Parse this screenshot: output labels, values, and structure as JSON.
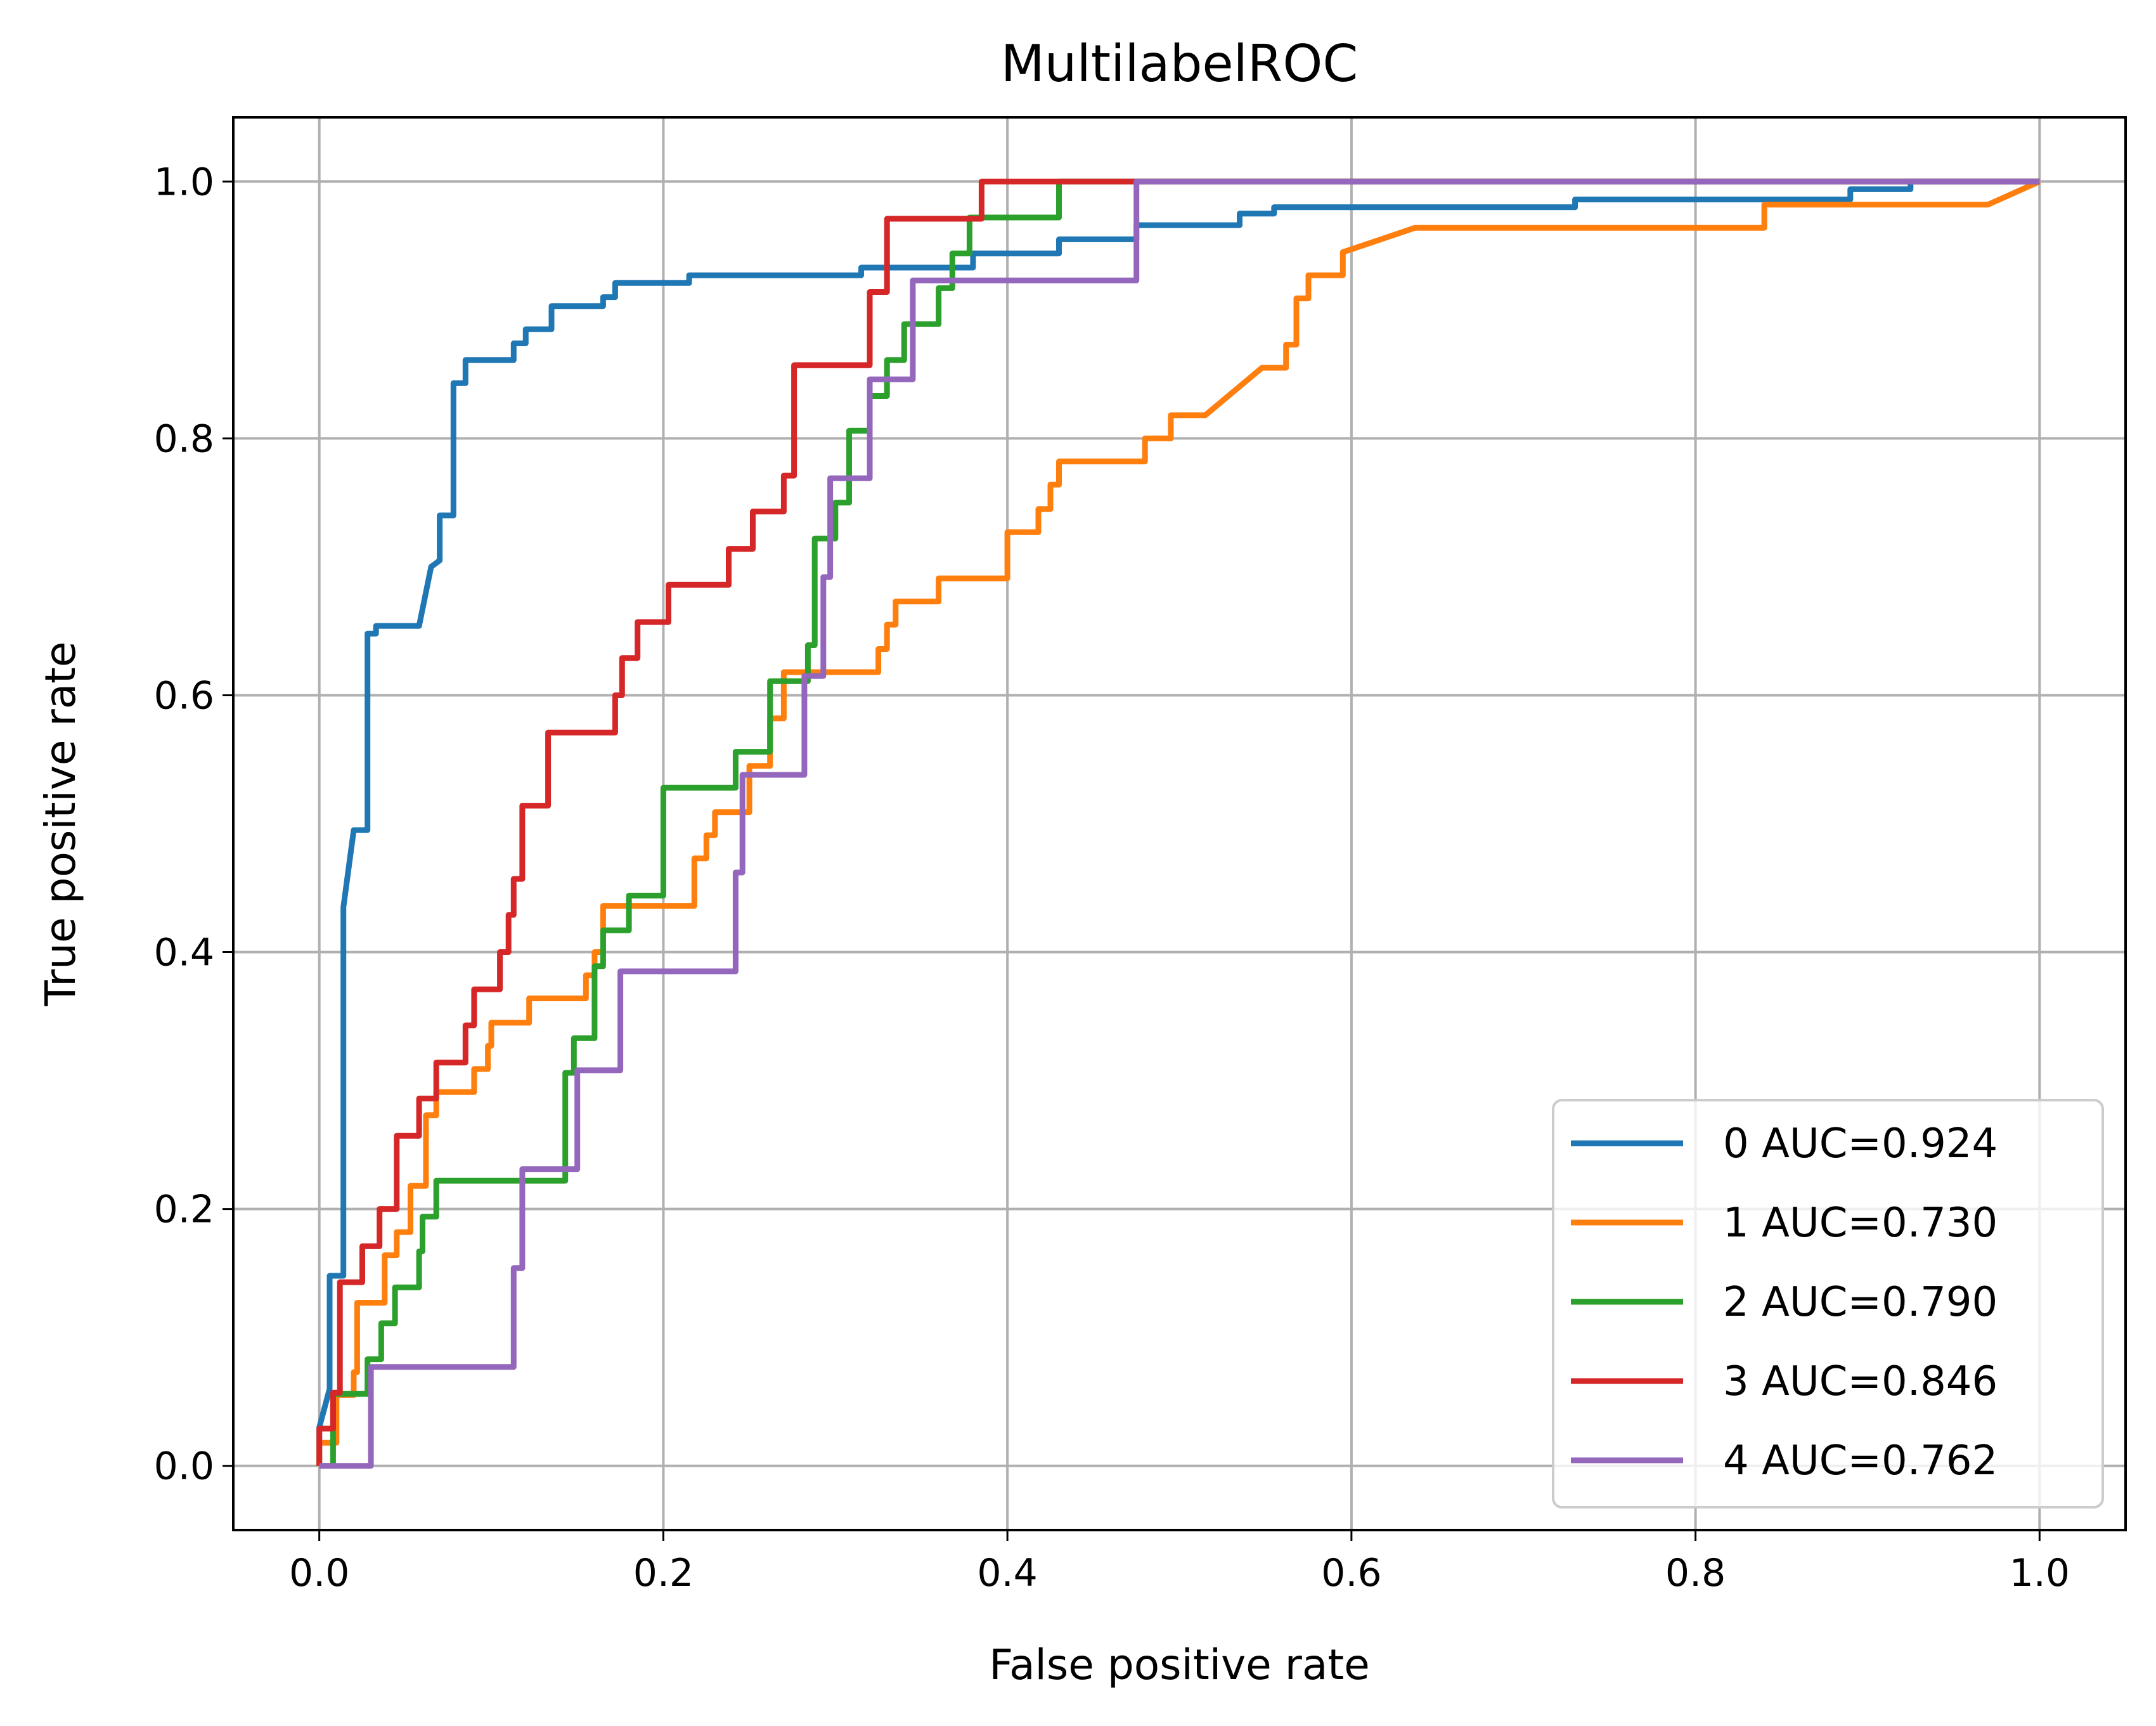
{
  "chart_data": {
    "type": "line",
    "title": "MultilabelROC",
    "xlabel": "False positive rate",
    "ylabel": "True positive rate",
    "xlim": [
      -0.05,
      1.05
    ],
    "ylim": [
      -0.05,
      1.05
    ],
    "grid": true,
    "legend_position": "lower right",
    "x_ticks": [
      "0.0",
      "0.2",
      "0.4",
      "0.6",
      "0.8",
      "1.0"
    ],
    "y_ticks": [
      "0.0",
      "0.2",
      "0.4",
      "0.6",
      "0.8",
      "1.0"
    ],
    "series": [
      {
        "name": "0 AUC=0.924",
        "color": "#1f77b4",
        "points": [
          [
            0,
            0
          ],
          [
            0,
            0.03
          ],
          [
            0.006,
            0.06
          ],
          [
            0.006,
            0.148
          ],
          [
            0.014,
            0.148
          ],
          [
            0.014,
            0.435
          ],
          [
            0.02,
            0.495
          ],
          [
            0.028,
            0.495
          ],
          [
            0.028,
            0.648
          ],
          [
            0.033,
            0.648
          ],
          [
            0.033,
            0.654
          ],
          [
            0.058,
            0.654
          ],
          [
            0.065,
            0.7
          ],
          [
            0.07,
            0.705
          ],
          [
            0.07,
            0.74
          ],
          [
            0.078,
            0.74
          ],
          [
            0.078,
            0.843
          ],
          [
            0.085,
            0.843
          ],
          [
            0.085,
            0.861
          ],
          [
            0.113,
            0.861
          ],
          [
            0.113,
            0.874
          ],
          [
            0.12,
            0.874
          ],
          [
            0.12,
            0.885
          ],
          [
            0.135,
            0.885
          ],
          [
            0.135,
            0.903
          ],
          [
            0.165,
            0.903
          ],
          [
            0.165,
            0.91
          ],
          [
            0.172,
            0.91
          ],
          [
            0.172,
            0.921
          ],
          [
            0.215,
            0.921
          ],
          [
            0.215,
            0.927
          ],
          [
            0.315,
            0.927
          ],
          [
            0.315,
            0.933
          ],
          [
            0.38,
            0.933
          ],
          [
            0.38,
            0.944
          ],
          [
            0.43,
            0.944
          ],
          [
            0.43,
            0.955
          ],
          [
            0.475,
            0.955
          ],
          [
            0.475,
            0.966
          ],
          [
            0.535,
            0.966
          ],
          [
            0.535,
            0.975
          ],
          [
            0.555,
            0.975
          ],
          [
            0.555,
            0.98
          ],
          [
            0.73,
            0.98
          ],
          [
            0.73,
            0.986
          ],
          [
            0.89,
            0.986
          ],
          [
            0.89,
            0.994
          ],
          [
            0.925,
            0.994
          ],
          [
            0.925,
            1.0
          ],
          [
            1.0,
            1.0
          ]
        ]
      },
      {
        "name": "1 AUC=0.730",
        "color": "#ff7f0e",
        "points": [
          [
            0,
            0
          ],
          [
            0,
            0.018
          ],
          [
            0.01,
            0.018
          ],
          [
            0.01,
            0.055
          ],
          [
            0.02,
            0.055
          ],
          [
            0.02,
            0.073
          ],
          [
            0.022,
            0.073
          ],
          [
            0.022,
            0.127
          ],
          [
            0.038,
            0.127
          ],
          [
            0.038,
            0.164
          ],
          [
            0.045,
            0.164
          ],
          [
            0.045,
            0.182
          ],
          [
            0.053,
            0.182
          ],
          [
            0.053,
            0.218
          ],
          [
            0.062,
            0.218
          ],
          [
            0.062,
            0.273
          ],
          [
            0.068,
            0.273
          ],
          [
            0.068,
            0.291
          ],
          [
            0.09,
            0.291
          ],
          [
            0.09,
            0.309
          ],
          [
            0.098,
            0.309
          ],
          [
            0.098,
            0.327
          ],
          [
            0.1,
            0.327
          ],
          [
            0.1,
            0.345
          ],
          [
            0.122,
            0.345
          ],
          [
            0.122,
            0.364
          ],
          [
            0.155,
            0.364
          ],
          [
            0.155,
            0.382
          ],
          [
            0.16,
            0.382
          ],
          [
            0.16,
            0.4
          ],
          [
            0.165,
            0.4
          ],
          [
            0.165,
            0.436
          ],
          [
            0.218,
            0.436
          ],
          [
            0.218,
            0.473
          ],
          [
            0.225,
            0.473
          ],
          [
            0.225,
            0.491
          ],
          [
            0.23,
            0.491
          ],
          [
            0.23,
            0.509
          ],
          [
            0.25,
            0.509
          ],
          [
            0.25,
            0.545
          ],
          [
            0.262,
            0.545
          ],
          [
            0.262,
            0.582
          ],
          [
            0.27,
            0.582
          ],
          [
            0.27,
            0.618
          ],
          [
            0.325,
            0.618
          ],
          [
            0.325,
            0.636
          ],
          [
            0.33,
            0.636
          ],
          [
            0.33,
            0.655
          ],
          [
            0.335,
            0.655
          ],
          [
            0.335,
            0.673
          ],
          [
            0.36,
            0.673
          ],
          [
            0.36,
            0.691
          ],
          [
            0.4,
            0.691
          ],
          [
            0.4,
            0.727
          ],
          [
            0.418,
            0.727
          ],
          [
            0.418,
            0.745
          ],
          [
            0.425,
            0.745
          ],
          [
            0.425,
            0.764
          ],
          [
            0.43,
            0.764
          ],
          [
            0.43,
            0.782
          ],
          [
            0.48,
            0.782
          ],
          [
            0.48,
            0.8
          ],
          [
            0.495,
            0.8
          ],
          [
            0.495,
            0.818
          ],
          [
            0.515,
            0.818
          ],
          [
            0.548,
            0.855
          ],
          [
            0.562,
            0.855
          ],
          [
            0.562,
            0.873
          ],
          [
            0.568,
            0.873
          ],
          [
            0.568,
            0.909
          ],
          [
            0.575,
            0.909
          ],
          [
            0.575,
            0.927
          ],
          [
            0.595,
            0.927
          ],
          [
            0.595,
            0.945
          ],
          [
            0.637,
            0.964
          ],
          [
            0.84,
            0.964
          ],
          [
            0.84,
            0.982
          ],
          [
            0.97,
            0.982
          ],
          [
            1.0,
            1.0
          ]
        ]
      },
      {
        "name": "2 AUC=0.790",
        "color": "#2ca02c",
        "points": [
          [
            0,
            0
          ],
          [
            0.008,
            0
          ],
          [
            0.008,
            0.056
          ],
          [
            0.028,
            0.056
          ],
          [
            0.028,
            0.083
          ],
          [
            0.036,
            0.083
          ],
          [
            0.036,
            0.111
          ],
          [
            0.044,
            0.111
          ],
          [
            0.044,
            0.139
          ],
          [
            0.058,
            0.139
          ],
          [
            0.058,
            0.167
          ],
          [
            0.06,
            0.167
          ],
          [
            0.06,
            0.194
          ],
          [
            0.068,
            0.194
          ],
          [
            0.068,
            0.222
          ],
          [
            0.143,
            0.222
          ],
          [
            0.143,
            0.306
          ],
          [
            0.148,
            0.306
          ],
          [
            0.148,
            0.333
          ],
          [
            0.16,
            0.333
          ],
          [
            0.16,
            0.389
          ],
          [
            0.165,
            0.389
          ],
          [
            0.165,
            0.417
          ],
          [
            0.18,
            0.417
          ],
          [
            0.18,
            0.444
          ],
          [
            0.2,
            0.444
          ],
          [
            0.2,
            0.528
          ],
          [
            0.242,
            0.528
          ],
          [
            0.242,
            0.556
          ],
          [
            0.262,
            0.556
          ],
          [
            0.262,
            0.611
          ],
          [
            0.284,
            0.611
          ],
          [
            0.284,
            0.639
          ],
          [
            0.288,
            0.639
          ],
          [
            0.288,
            0.722
          ],
          [
            0.3,
            0.722
          ],
          [
            0.3,
            0.75
          ],
          [
            0.308,
            0.75
          ],
          [
            0.308,
            0.806
          ],
          [
            0.32,
            0.806
          ],
          [
            0.32,
            0.833
          ],
          [
            0.33,
            0.833
          ],
          [
            0.33,
            0.861
          ],
          [
            0.34,
            0.861
          ],
          [
            0.34,
            0.889
          ],
          [
            0.36,
            0.889
          ],
          [
            0.36,
            0.917
          ],
          [
            0.368,
            0.917
          ],
          [
            0.368,
            0.944
          ],
          [
            0.378,
            0.944
          ],
          [
            0.378,
            0.972
          ],
          [
            0.43,
            0.972
          ],
          [
            0.43,
            1.0
          ],
          [
            1.0,
            1.0
          ]
        ]
      },
      {
        "name": "3 AUC=0.846",
        "color": "#d62728",
        "points": [
          [
            0,
            0
          ],
          [
            0,
            0.029
          ],
          [
            0.008,
            0.029
          ],
          [
            0.008,
            0.057
          ],
          [
            0.012,
            0.057
          ],
          [
            0.012,
            0.143
          ],
          [
            0.025,
            0.143
          ],
          [
            0.025,
            0.171
          ],
          [
            0.035,
            0.171
          ],
          [
            0.035,
            0.2
          ],
          [
            0.045,
            0.2
          ],
          [
            0.045,
            0.257
          ],
          [
            0.058,
            0.257
          ],
          [
            0.058,
            0.286
          ],
          [
            0.068,
            0.286
          ],
          [
            0.068,
            0.314
          ],
          [
            0.085,
            0.314
          ],
          [
            0.085,
            0.343
          ],
          [
            0.09,
            0.343
          ],
          [
            0.09,
            0.371
          ],
          [
            0.105,
            0.371
          ],
          [
            0.105,
            0.4
          ],
          [
            0.11,
            0.4
          ],
          [
            0.11,
            0.429
          ],
          [
            0.113,
            0.429
          ],
          [
            0.113,
            0.457
          ],
          [
            0.118,
            0.457
          ],
          [
            0.118,
            0.514
          ],
          [
            0.133,
            0.514
          ],
          [
            0.133,
            0.571
          ],
          [
            0.172,
            0.571
          ],
          [
            0.172,
            0.6
          ],
          [
            0.176,
            0.6
          ],
          [
            0.176,
            0.629
          ],
          [
            0.185,
            0.629
          ],
          [
            0.185,
            0.657
          ],
          [
            0.203,
            0.657
          ],
          [
            0.203,
            0.686
          ],
          [
            0.238,
            0.686
          ],
          [
            0.238,
            0.714
          ],
          [
            0.252,
            0.714
          ],
          [
            0.252,
            0.743
          ],
          [
            0.27,
            0.743
          ],
          [
            0.27,
            0.771
          ],
          [
            0.276,
            0.771
          ],
          [
            0.276,
            0.857
          ],
          [
            0.32,
            0.857
          ],
          [
            0.32,
            0.914
          ],
          [
            0.33,
            0.914
          ],
          [
            0.33,
            0.971
          ],
          [
            0.385,
            0.971
          ],
          [
            0.385,
            1.0
          ],
          [
            1.0,
            1.0
          ]
        ]
      },
      {
        "name": "4 AUC=0.762",
        "color": "#9467bd",
        "points": [
          [
            0,
            0
          ],
          [
            0.03,
            0
          ],
          [
            0.03,
            0.077
          ],
          [
            0.113,
            0.077
          ],
          [
            0.113,
            0.154
          ],
          [
            0.118,
            0.154
          ],
          [
            0.118,
            0.231
          ],
          [
            0.15,
            0.231
          ],
          [
            0.15,
            0.308
          ],
          [
            0.175,
            0.308
          ],
          [
            0.175,
            0.385
          ],
          [
            0.242,
            0.385
          ],
          [
            0.242,
            0.462
          ],
          [
            0.246,
            0.462
          ],
          [
            0.246,
            0.538
          ],
          [
            0.282,
            0.538
          ],
          [
            0.282,
            0.615
          ],
          [
            0.293,
            0.615
          ],
          [
            0.293,
            0.692
          ],
          [
            0.297,
            0.692
          ],
          [
            0.297,
            0.769
          ],
          [
            0.32,
            0.769
          ],
          [
            0.32,
            0.846
          ],
          [
            0.345,
            0.846
          ],
          [
            0.345,
            0.923
          ],
          [
            0.475,
            0.923
          ],
          [
            0.475,
            1.0
          ],
          [
            1.0,
            1.0
          ]
        ]
      }
    ]
  }
}
